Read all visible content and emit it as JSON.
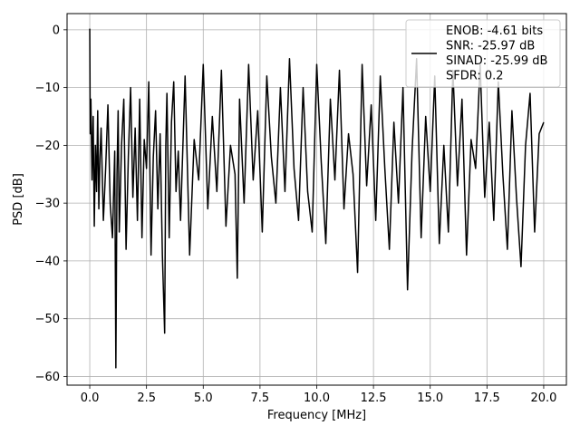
{
  "chart_data": {
    "type": "line",
    "title": "",
    "xlabel": "Frequency [MHz]",
    "ylabel": "PSD [dB]",
    "xlim": [
      -1.0,
      21.0
    ],
    "ylim": [
      -61.5,
      2.8
    ],
    "xticks": [
      0.0,
      2.5,
      5.0,
      7.5,
      10.0,
      12.5,
      15.0,
      17.5,
      20.0
    ],
    "xtick_labels": [
      "0.0",
      "2.5",
      "5.0",
      "7.5",
      "10.0",
      "12.5",
      "15.0",
      "17.5",
      "20.0"
    ],
    "yticks": [
      0,
      -10,
      -20,
      -30,
      -40,
      -50,
      -60
    ],
    "ytick_labels": [
      "0",
      "−10",
      "−20",
      "−30",
      "−40",
      "−50",
      "−60"
    ],
    "grid": true,
    "legend_position": "upper-right",
    "series": [
      {
        "name": "ENOB: -4.61 bits\nSNR: -25.97 dB\nSINAD: -25.99 dB\nSFDR: 0.2",
        "color": "#000000",
        "x": [
          0.0,
          0.02,
          0.05,
          0.1,
          0.15,
          0.2,
          0.25,
          0.3,
          0.35,
          0.4,
          0.45,
          0.5,
          0.6,
          0.7,
          0.8,
          0.9,
          1.0,
          1.1,
          1.15,
          1.2,
          1.25,
          1.3,
          1.4,
          1.5,
          1.6,
          1.7,
          1.8,
          1.9,
          2.0,
          2.1,
          2.2,
          2.3,
          2.4,
          2.5,
          2.6,
          2.7,
          2.8,
          2.9,
          3.0,
          3.1,
          3.2,
          3.3,
          3.35,
          3.4,
          3.5,
          3.6,
          3.7,
          3.8,
          3.9,
          4.0,
          4.2,
          4.4,
          4.6,
          4.8,
          5.0,
          5.2,
          5.4,
          5.6,
          5.8,
          6.0,
          6.2,
          6.4,
          6.5,
          6.6,
          6.8,
          7.0,
          7.2,
          7.4,
          7.6,
          7.8,
          8.0,
          8.2,
          8.4,
          8.6,
          8.8,
          9.0,
          9.2,
          9.4,
          9.6,
          9.8,
          10.0,
          10.2,
          10.4,
          10.6,
          10.8,
          11.0,
          11.2,
          11.4,
          11.6,
          11.8,
          12.0,
          12.2,
          12.4,
          12.6,
          12.8,
          13.0,
          13.2,
          13.4,
          13.6,
          13.8,
          14.0,
          14.2,
          14.4,
          14.6,
          14.8,
          15.0,
          15.2,
          15.4,
          15.6,
          15.8,
          16.0,
          16.2,
          16.4,
          16.6,
          16.8,
          17.0,
          17.2,
          17.4,
          17.6,
          17.8,
          18.0,
          18.2,
          18.4,
          18.6,
          18.8,
          19.0,
          19.2,
          19.4,
          19.6,
          19.8,
          20.0
        ],
        "y": [
          0.2,
          -18,
          -12,
          -26,
          -15,
          -34,
          -20,
          -28,
          -14,
          -31,
          -22,
          -17,
          -33,
          -24,
          -13,
          -30,
          -36,
          -21,
          -58.5,
          -25,
          -14,
          -35,
          -20,
          -12,
          -38,
          -22,
          -10,
          -29,
          -17,
          -33,
          -12,
          -36,
          -19,
          -24,
          -9,
          -39,
          -22,
          -14,
          -31,
          -18,
          -39,
          -52.5,
          -20,
          -11,
          -36,
          -16,
          -9,
          -28,
          -21,
          -33,
          -8,
          -39,
          -19,
          -26,
          -6,
          -31,
          -15,
          -28,
          -7,
          -34,
          -20,
          -25,
          -43,
          -12,
          -30,
          -6,
          -26,
          -14,
          -35,
          -8,
          -22,
          -30,
          -10,
          -28,
          -5,
          -24,
          -33,
          -10,
          -28,
          -35,
          -6,
          -23,
          -37,
          -12,
          -26,
          -7,
          -31,
          -18,
          -25,
          -42,
          -6,
          -27,
          -13,
          -33,
          -8,
          -24,
          -38,
          -16,
          -30,
          -10,
          -45,
          -21,
          -5,
          -36,
          -15,
          -28,
          -8,
          -37,
          -20,
          -35,
          -7,
          -27,
          -12,
          -39,
          -19,
          -24,
          -6,
          -29,
          -16,
          -33,
          -9,
          -25,
          -38,
          -14,
          -29,
          -41,
          -20,
          -11,
          -35,
          -18,
          -16
        ]
      }
    ]
  }
}
